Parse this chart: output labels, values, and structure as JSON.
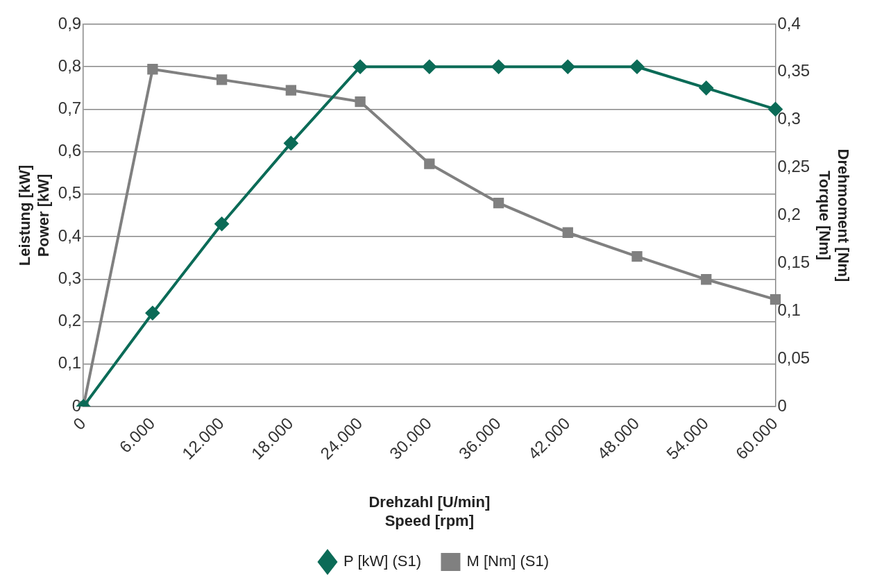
{
  "chart_data": {
    "type": "line",
    "xlabel": "Drehzahl [U/min]\nSpeed [rpm]",
    "ylabel": "Leistung [kW]\nPower [kW]",
    "y2label": "Drehmoment [Nm]\nTorque [Nm]",
    "categories": [
      "0",
      "6.000",
      "12.000",
      "18.000",
      "24.000",
      "30.000",
      "36.000",
      "42.000",
      "48.000",
      "54.000",
      "60.000"
    ],
    "series": [
      {
        "name": "P [kW] (S1)",
        "color": "#0b6b57",
        "marker": "diamond",
        "values": [
          0,
          0.22,
          0.43,
          0.62,
          0.8,
          0.8,
          0.8,
          0.8,
          0.8,
          0.75,
          0.7
        ]
      },
      {
        "name": "M [Nm] (S1)",
        "color": "#808080",
        "marker": "square",
        "axis": "y2",
        "values": [
          0,
          0.353,
          0.342,
          0.331,
          0.319,
          0.254,
          0.213,
          0.182,
          0.157,
          0.133,
          0.112
        ]
      }
    ],
    "ylim": [
      0,
      0.9
    ],
    "yticks": [
      0,
      {
        "value": 0.1,
        "label": "0,1"
      },
      {
        "value": 0.2,
        "label": "0,2"
      },
      {
        "value": 0.3,
        "label": "0,3"
      },
      {
        "value": 0.4,
        "label": "0,4"
      },
      {
        "value": 0.5,
        "label": "0,5"
      },
      {
        "value": 0.6,
        "label": "0,6"
      },
      {
        "value": 0.7,
        "label": "0,7"
      },
      {
        "value": 0.8,
        "label": "0,8"
      },
      {
        "value": 0.9,
        "label": "0,9"
      }
    ],
    "y2lim": [
      0,
      0.4
    ],
    "y2ticks": [
      0,
      {
        "value": 0.05,
        "label": "0,05"
      },
      {
        "value": 0.1,
        "label": "0,1"
      },
      {
        "value": 0.15,
        "label": "0,15"
      },
      {
        "value": 0.2,
        "label": "0,2"
      },
      {
        "value": 0.25,
        "label": "0,25"
      },
      {
        "value": 0.3,
        "label": "0,3"
      },
      {
        "value": 0.35,
        "label": "0,35"
      },
      {
        "value": 0.4,
        "label": "0,4"
      }
    ],
    "grid": "y",
    "legend": "bottom",
    "line_style": "solid"
  }
}
